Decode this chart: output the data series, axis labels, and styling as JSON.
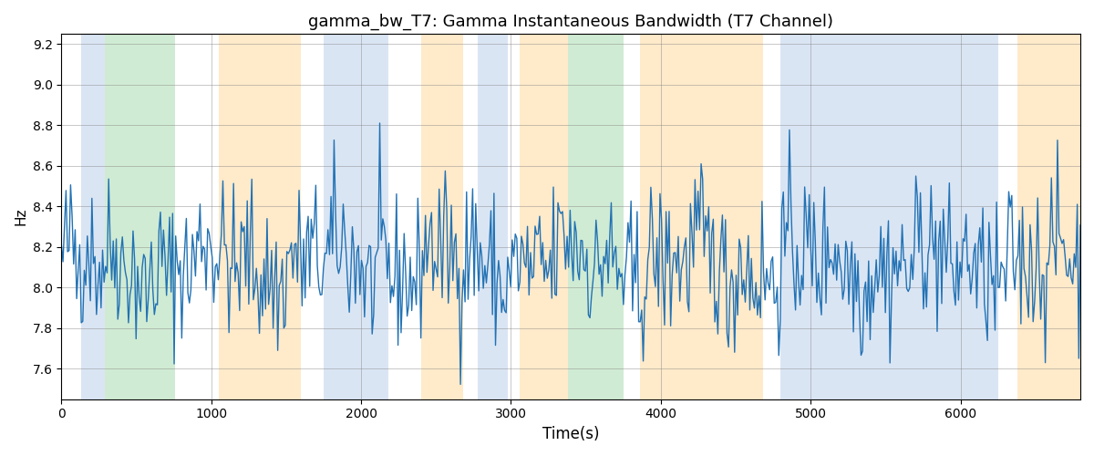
{
  "title": "gamma_bw_T7: Gamma Instantaneous Bandwidth (T7 Channel)",
  "xlabel": "Time(s)",
  "ylabel": "Hz",
  "xlim": [
    0,
    6800
  ],
  "ylim": [
    7.45,
    9.25
  ],
  "line_color": "#2272b4",
  "line_width": 1.0,
  "grid": true,
  "background_color": "#ffffff",
  "bands": [
    {
      "xmin": 130,
      "xmax": 290,
      "color": "#aec6e8",
      "alpha": 0.45
    },
    {
      "xmin": 290,
      "xmax": 760,
      "color": "#98d49e",
      "alpha": 0.45
    },
    {
      "xmin": 1050,
      "xmax": 1600,
      "color": "#ffd9a0",
      "alpha": 0.55
    },
    {
      "xmin": 1750,
      "xmax": 2180,
      "color": "#aec6e8",
      "alpha": 0.45
    },
    {
      "xmin": 2400,
      "xmax": 2680,
      "color": "#ffd9a0",
      "alpha": 0.55
    },
    {
      "xmin": 2780,
      "xmax": 2980,
      "color": "#aec6e8",
      "alpha": 0.45
    },
    {
      "xmin": 3060,
      "xmax": 3380,
      "color": "#ffd9a0",
      "alpha": 0.55
    },
    {
      "xmin": 3380,
      "xmax": 3750,
      "color": "#98d49e",
      "alpha": 0.45
    },
    {
      "xmin": 3860,
      "xmax": 4060,
      "color": "#ffd9a0",
      "alpha": 0.55
    },
    {
      "xmin": 4060,
      "xmax": 4680,
      "color": "#ffd9a0",
      "alpha": 0.55
    },
    {
      "xmin": 4800,
      "xmax": 6250,
      "color": "#aec6e8",
      "alpha": 0.45
    },
    {
      "xmin": 6380,
      "xmax": 6800,
      "color": "#ffd9a0",
      "alpha": 0.55
    }
  ],
  "seed": 42,
  "n_points": 670,
  "signal_mean": 8.12,
  "signal_std": 0.18,
  "signal_noise": 0.1
}
